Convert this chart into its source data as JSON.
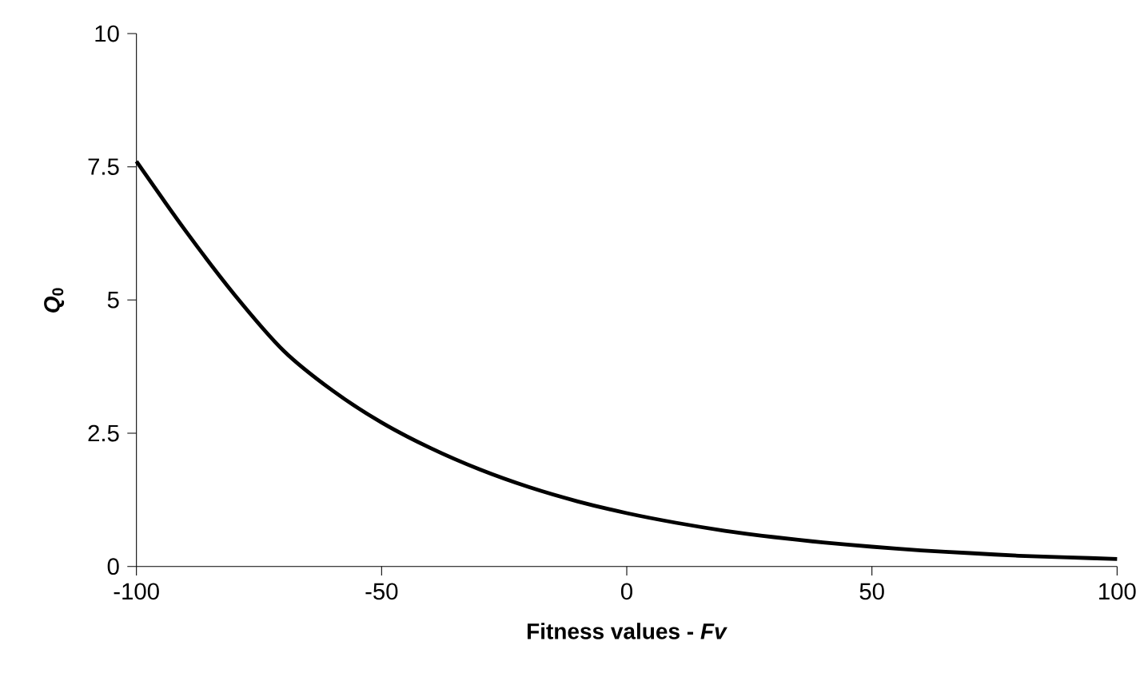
{
  "chart_data": {
    "type": "line",
    "xlabel": "Fitness values - *Fv*",
    "ylabel": "*Q*$_{0}$",
    "x": [
      -100,
      -90,
      -80,
      -70,
      -60,
      -50,
      -40,
      -30,
      -20,
      -10,
      0,
      10,
      20,
      30,
      40,
      50,
      60,
      70,
      80,
      90,
      100
    ],
    "series": [
      {
        "color": "#000000",
        "values": [
          7.6,
          6.3,
          5.1,
          4.05,
          3.3,
          2.7,
          2.22,
          1.82,
          1.49,
          1.22,
          1.0,
          0.82,
          0.67,
          0.55,
          0.45,
          0.37,
          0.3,
          0.25,
          0.2,
          0.17,
          0.14
        ]
      }
    ],
    "xlim": [
      -100,
      100
    ],
    "ylim": [
      0,
      10
    ],
    "xticks": [
      -100,
      -50,
      0,
      50,
      100
    ],
    "yticks": [
      0,
      {
        "value": 2.5,
        "label": "2.5"
      },
      5,
      {
        "value": 7.5,
        "label": "7.5"
      },
      10
    ],
    "grid": false,
    "marker": "none",
    "line_style": "solid"
  }
}
